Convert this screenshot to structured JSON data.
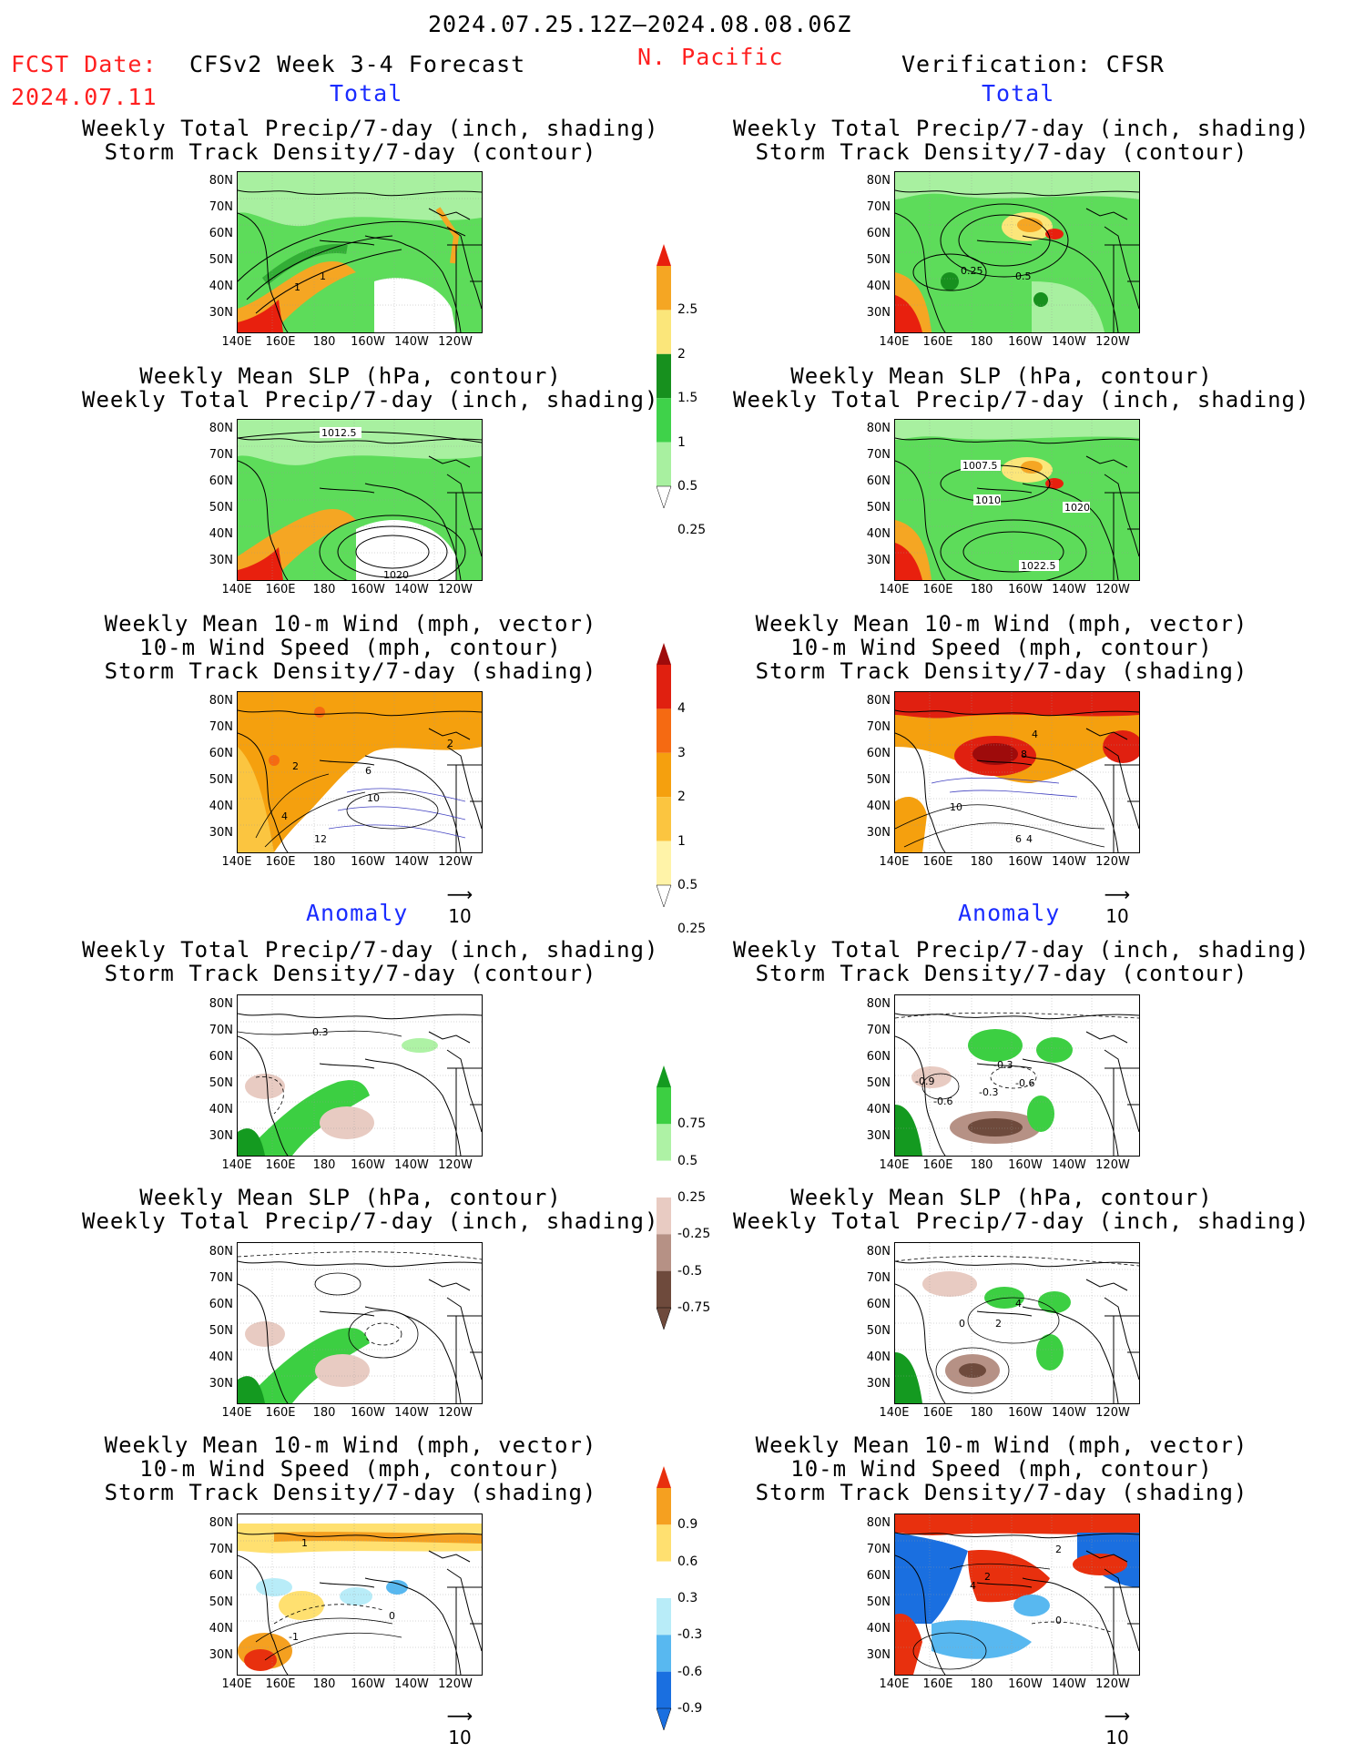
{
  "header": {
    "date_range": "2024.07.25.12Z–2024.08.08.06Z",
    "fcst_label": "FCST Date:",
    "fcst_date": "2024.07.11",
    "model": "CFSv2 Week 3-4 Forecast",
    "region": "N. Pacific",
    "verification": "Verification: CFSR"
  },
  "sections": {
    "total": "Total",
    "anomaly": "Anomaly"
  },
  "titles": {
    "precip_track_l1": "Weekly Total Precip/7-day (inch, shading)",
    "precip_track_l2": "Storm Track Density/7-day (contour)",
    "slp_l1": "Weekly Mean SLP (hPa, contour)",
    "slp_l2": "Weekly Total Precip/7-day (inch, shading)",
    "wind_l1": "Weekly Mean 10-m Wind (mph, vector)",
    "wind_l2": "10-m Wind Speed (mph, contour)",
    "wind_l3": "Storm Track Density/7-day (shading)"
  },
  "axes": {
    "lat": [
      "80N",
      "70N",
      "60N",
      "50N",
      "40N",
      "30N"
    ],
    "lon": [
      "140E",
      "160E",
      "180",
      "160W",
      "140W",
      "120W"
    ]
  },
  "vector_ref": "10",
  "contour_labels": {
    "fc_precip": [
      "1",
      "1"
    ],
    "ob_precip": [
      "0.25",
      "0.5"
    ],
    "fc_slp": [
      "1012.5",
      "1020"
    ],
    "ob_slp": [
      "1007.5",
      "1010",
      "1020",
      "1022.5"
    ],
    "fc_wind": [
      "2",
      "2",
      "6",
      "10",
      "4",
      "12"
    ],
    "ob_wind": [
      "4",
      "8",
      "10",
      "6",
      "4"
    ],
    "ob_precip_anom": [
      "-0.3",
      "-0.9",
      "-0.6",
      "-0.3",
      "-0.6"
    ],
    "fc_precip_anom": [
      "0.3"
    ],
    "ob_slp_anom": [
      "4",
      "0",
      "2"
    ],
    "fc_wind_anom": [
      "1",
      "-1",
      "0"
    ],
    "ob_wind_anom": [
      "2",
      "4",
      "2",
      "0"
    ]
  },
  "colorbars": {
    "precip_total": {
      "labels": [
        "2.5",
        "2",
        "1.5",
        "1",
        "0.5",
        "0.25"
      ],
      "colors": [
        "#e8200e",
        "#f5a623",
        "#fbe67a",
        "#17901e",
        "#3fd24a",
        "#a8f0a0"
      ]
    },
    "track_total": {
      "labels": [
        "4",
        "3",
        "2",
        "1",
        "0.5",
        "0.25"
      ],
      "colors": [
        "#9e0b0b",
        "#e02010",
        "#f56a12",
        "#f5a00e",
        "#fbc540",
        "#fff3a8"
      ]
    },
    "precip_anom": {
      "labels": [
        "0.75",
        "0.5",
        "0.25",
        "-0.25",
        "-0.5",
        "-0.75"
      ],
      "colors": [
        "#149a20",
        "#3ccf42",
        "#aef2a5",
        "#ffffff",
        "#e8cbc2",
        "#b69185",
        "#6e4a3c"
      ]
    },
    "track_anom": {
      "labels": [
        "0.9",
        "0.6",
        "0.3",
        "-0.3",
        "-0.6",
        "-0.9"
      ],
      "colors": [
        "#e8300e",
        "#f5a020",
        "#ffe070",
        "#ffffff",
        "#b8ecf8",
        "#58b8f0",
        "#1a6fe0"
      ]
    }
  }
}
